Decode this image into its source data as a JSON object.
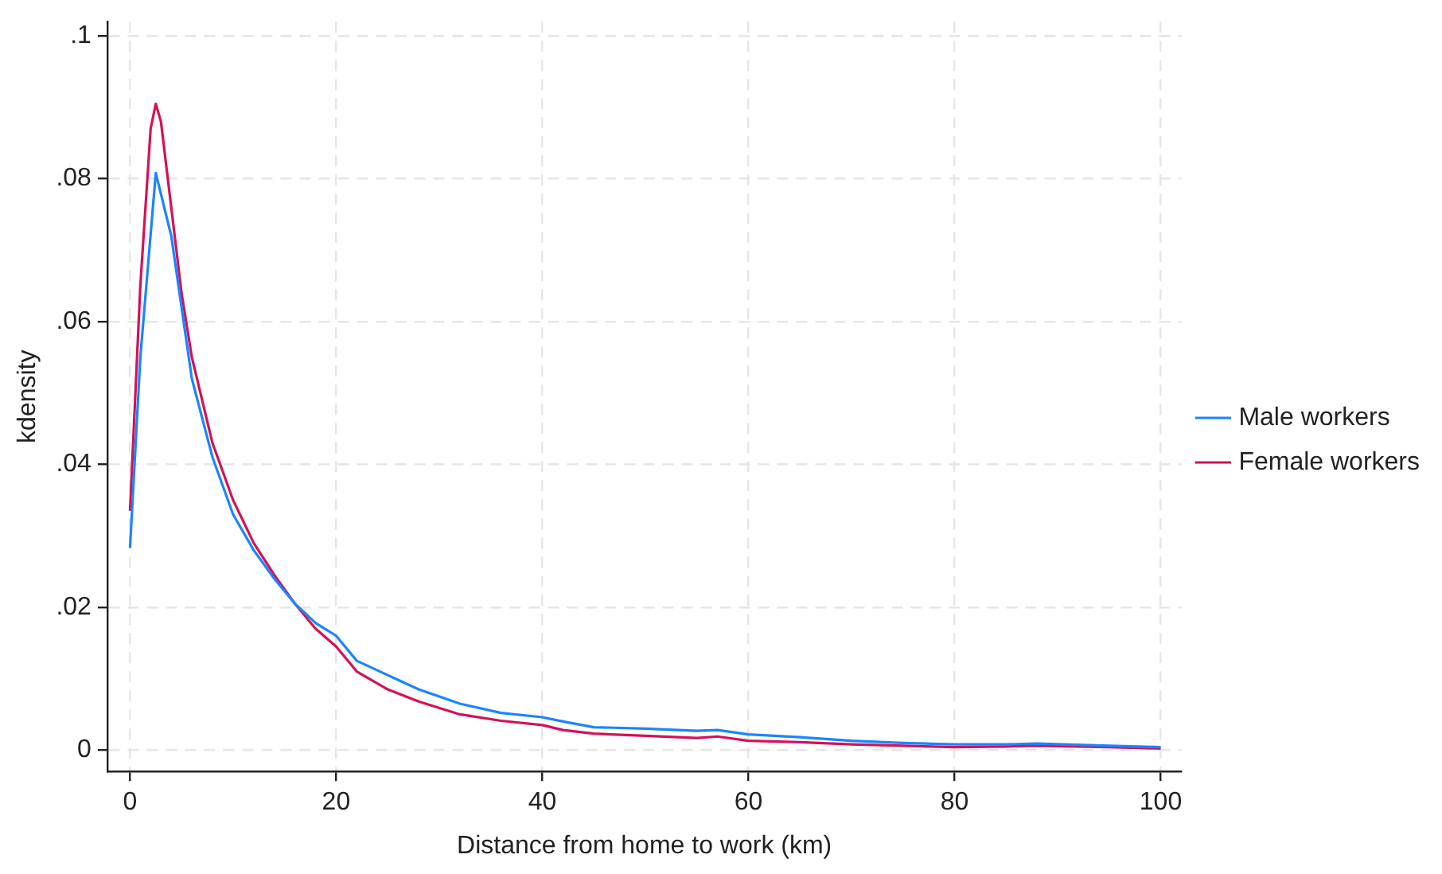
{
  "chart_data": {
    "type": "line",
    "xlabel": "Distance from home to work (km)",
    "ylabel": "kdensity",
    "xlim": [
      -2.2,
      102
    ],
    "ylim": [
      -0.003,
      0.102
    ],
    "xticks": [
      0,
      20,
      40,
      60,
      80,
      100
    ],
    "yticks": [
      {
        "value": 0,
        "label": "0"
      },
      {
        "value": 0.02,
        "label": ".02"
      },
      {
        "value": 0.04,
        "label": ".04"
      },
      {
        "value": 0.06,
        "label": ".06"
      },
      {
        "value": 0.08,
        "label": ".08"
      },
      {
        "value": 0.1,
        "label": ".1"
      }
    ],
    "grid": true,
    "legend": "right",
    "marker": "none",
    "line_style": "solid",
    "series": [
      {
        "name": "Male workers",
        "color": "#1a85ff",
        "x": [
          0,
          1,
          2.5,
          4,
          5,
          6,
          8,
          10,
          12,
          14,
          16,
          18,
          20,
          22,
          25,
          28,
          32,
          36,
          40,
          42,
          45,
          50,
          55,
          57,
          60,
          65,
          70,
          75,
          80,
          85,
          88,
          95,
          100
        ],
        "values": [
          0.0283,
          0.055,
          0.0808,
          0.072,
          0.062,
          0.052,
          0.041,
          0.033,
          0.028,
          0.024,
          0.0205,
          0.0178,
          0.016,
          0.0125,
          0.0105,
          0.0085,
          0.0065,
          0.0052,
          0.0046,
          0.004,
          0.0032,
          0.003,
          0.0027,
          0.0028,
          0.0022,
          0.0018,
          0.0013,
          0.001,
          0.0008,
          0.0008,
          0.0009,
          0.0006,
          0.0004
        ]
      },
      {
        "name": "Female workers",
        "color": "#d41159",
        "x": [
          0,
          1,
          2,
          2.5,
          3,
          4,
          5,
          6,
          8,
          10,
          12,
          14,
          16,
          18,
          20,
          22,
          25,
          28,
          32,
          36,
          40,
          42,
          45,
          50,
          55,
          57,
          60,
          65,
          70,
          75,
          80,
          85,
          88,
          95,
          100
        ],
        "values": [
          0.0335,
          0.065,
          0.087,
          0.0905,
          0.088,
          0.076,
          0.064,
          0.055,
          0.043,
          0.035,
          0.029,
          0.0245,
          0.0205,
          0.017,
          0.0145,
          0.011,
          0.0085,
          0.0068,
          0.005,
          0.0041,
          0.0035,
          0.0028,
          0.0023,
          0.002,
          0.0017,
          0.0019,
          0.0013,
          0.0011,
          0.0008,
          0.0006,
          0.0004,
          0.0005,
          0.0006,
          0.0004,
          0.0002
        ]
      }
    ]
  }
}
